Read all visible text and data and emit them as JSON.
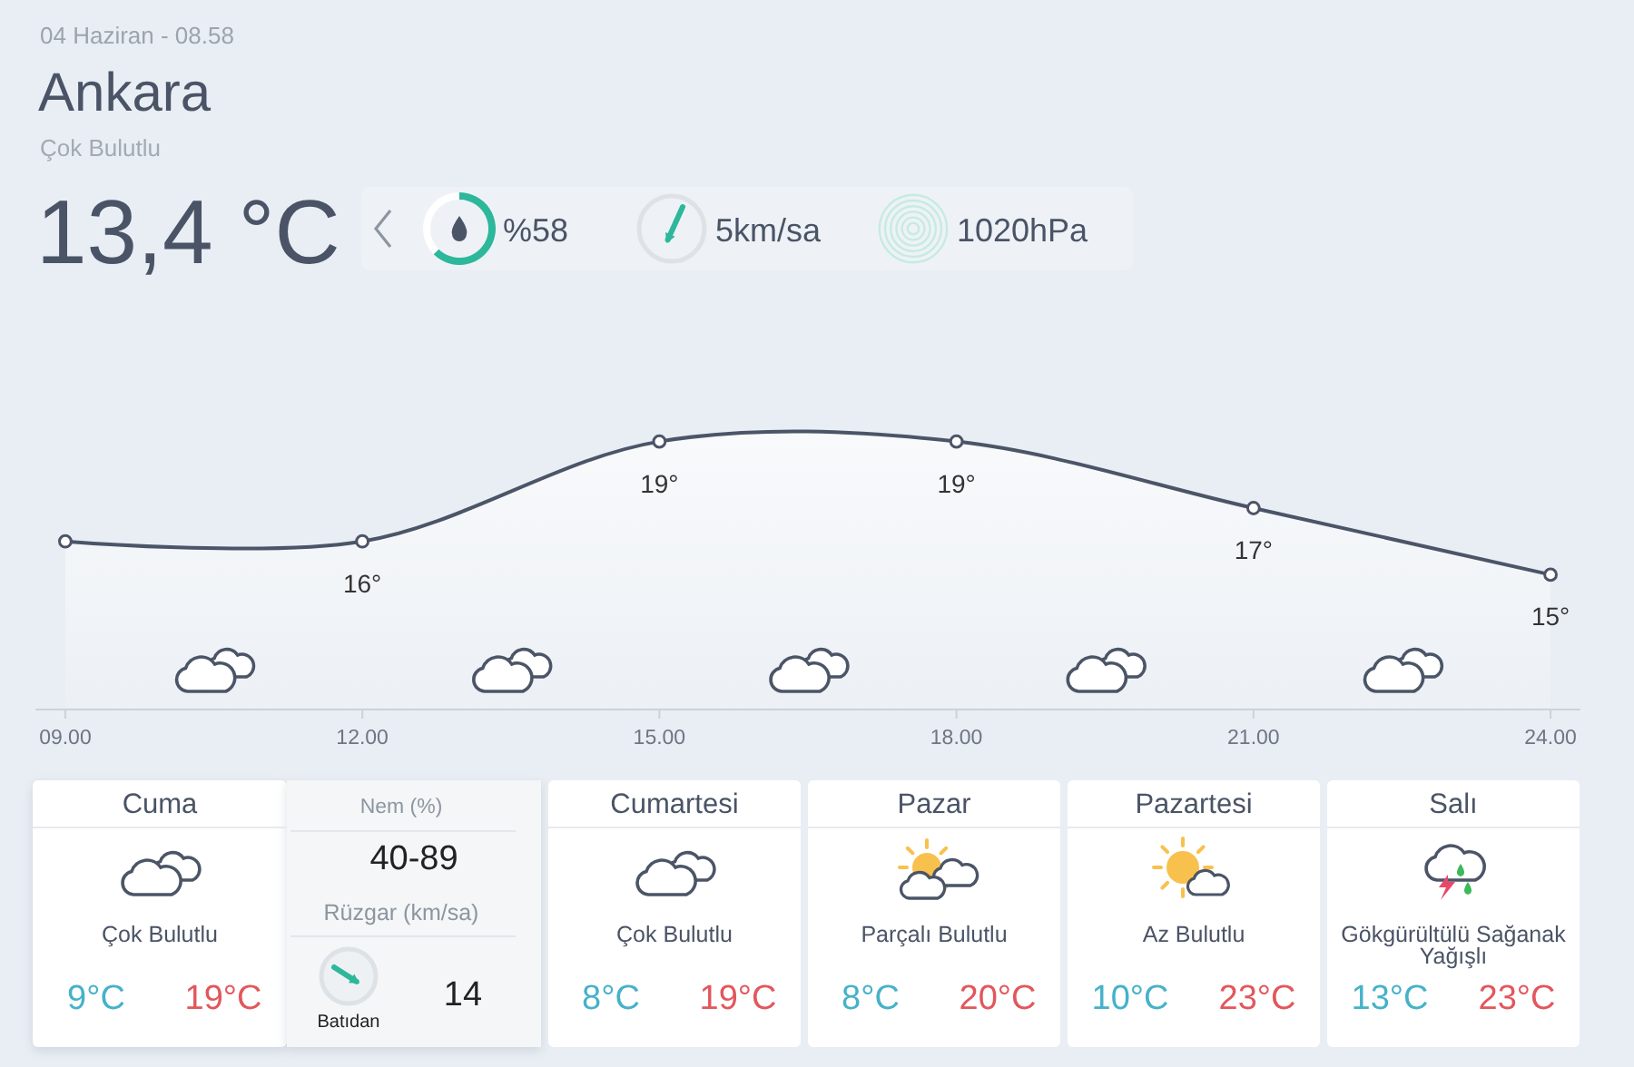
{
  "chart_data": [
    {
      "type": "other",
      "title": "Ankara",
      "subtitle": "Çok Bulutlu",
      "annotations": [
        "04 Haziran - 08.58",
        "13,4 °C",
        "%58",
        "5km/sa",
        "1020hPa"
      ]
    },
    {
      "type": "area",
      "x": [
        9,
        12,
        15,
        18,
        21,
        24
      ],
      "values": [
        16,
        16,
        19,
        19,
        17,
        15
      ],
      "value_labels": [
        null,
        "16°",
        "19°",
        "19°",
        "17°",
        "15°"
      ],
      "color": "#4b5567",
      "xlim": [
        8.7,
        24.3
      ],
      "xticks": [
        {
          "value": 9,
          "label": "09.00"
        },
        {
          "value": 12,
          "label": "12.00"
        },
        {
          "value": 15,
          "label": "15.00"
        },
        {
          "value": 18,
          "label": "18.00"
        },
        {
          "value": 21,
          "label": "21.00"
        },
        {
          "value": 24,
          "label": "24.00"
        }
      ],
      "tick_labels": "x",
      "marker": "circle"
    },
    {
      "type": "other",
      "categories": [
        "Cuma",
        "Cumartesi",
        "Pazar",
        "Pazartesi",
        "Salı"
      ],
      "annotations": [
        "Çok Bulutlu",
        "9°C",
        "19°C",
        "Çok Bulutlu",
        "8°C",
        "19°C",
        "Parçalı Bulutlu",
        "8°C",
        "20°C",
        "Az Bulutlu",
        "10°C",
        "23°C",
        "Gökgürültülü Sağanak Yağışlı",
        "13°C",
        "23°C",
        "Nem (%)",
        "40-89",
        "Rüzgar (km/sa)",
        "14",
        "Batıdan"
      ]
    }
  ]
}
